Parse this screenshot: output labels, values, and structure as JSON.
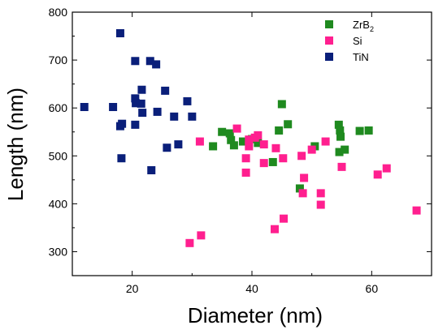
{
  "chart_data": {
    "type": "scatter",
    "xlabel": "Diameter (nm)",
    "ylabel": "Length (nm)",
    "xlim": [
      10,
      70
    ],
    "ylim": [
      250,
      800
    ],
    "xticks": [
      20,
      40,
      60
    ],
    "yticks": [
      300,
      400,
      500,
      600,
      700,
      800
    ],
    "xtick_labels": [
      "20",
      "40",
      "60"
    ],
    "ytick_labels": [
      "300",
      "400",
      "500",
      "600",
      "700",
      "800"
    ],
    "grid": false,
    "legend_position": "top-right",
    "series": [
      {
        "name": "ZrB2",
        "legend_base": "ZrB",
        "legend_sub": "2",
        "color": "#1f8a1f",
        "marker": "square",
        "points": [
          [
            33.5,
            520
          ],
          [
            35,
            550
          ],
          [
            36.3,
            547
          ],
          [
            36.5,
            533
          ],
          [
            37,
            522
          ],
          [
            38.5,
            530
          ],
          [
            40,
            535
          ],
          [
            41,
            527
          ],
          [
            43.5,
            487
          ],
          [
            44.5,
            553
          ],
          [
            45,
            608
          ],
          [
            46,
            566
          ],
          [
            48,
            432
          ],
          [
            50.5,
            520
          ],
          [
            54.6,
            508
          ],
          [
            54.5,
            565
          ],
          [
            54.7,
            553
          ],
          [
            54.8,
            540
          ],
          [
            55.5,
            513
          ],
          [
            58,
            552
          ],
          [
            59.5,
            553
          ]
        ]
      },
      {
        "name": "Si",
        "color": "#ff1f8f",
        "marker": "square",
        "points": [
          [
            29.6,
            318
          ],
          [
            31.3,
            530
          ],
          [
            31.5,
            334
          ],
          [
            37.5,
            557
          ],
          [
            39,
            465
          ],
          [
            39,
            495
          ],
          [
            39.5,
            520
          ],
          [
            39.5,
            534
          ],
          [
            40.5,
            538
          ],
          [
            41,
            543
          ],
          [
            42,
            485
          ],
          [
            42,
            524
          ],
          [
            43.8,
            347
          ],
          [
            44,
            516
          ],
          [
            45.2,
            495
          ],
          [
            45.3,
            369
          ],
          [
            48.5,
            422
          ],
          [
            48.7,
            454
          ],
          [
            48.3,
            500
          ],
          [
            50,
            513
          ],
          [
            51.5,
            422
          ],
          [
            51.5,
            398
          ],
          [
            52.3,
            530
          ],
          [
            55,
            477
          ],
          [
            61,
            461
          ],
          [
            62.5,
            474
          ],
          [
            67.5,
            386
          ]
        ]
      },
      {
        "name": "TiN",
        "color": "#0a1f7a",
        "marker": "square",
        "points": [
          [
            12,
            602
          ],
          [
            16.8,
            602
          ],
          [
            18,
            756
          ],
          [
            18,
            562
          ],
          [
            18.3,
            567
          ],
          [
            18.2,
            495
          ],
          [
            20.5,
            698
          ],
          [
            20.5,
            620
          ],
          [
            20.6,
            610
          ],
          [
            20.5,
            565
          ],
          [
            21.5,
            609
          ],
          [
            21.6,
            638
          ],
          [
            21.7,
            590
          ],
          [
            23,
            698
          ],
          [
            24,
            691
          ],
          [
            23.2,
            470
          ],
          [
            24.2,
            592
          ],
          [
            25.5,
            636
          ],
          [
            25.8,
            517
          ],
          [
            27,
            582
          ],
          [
            27.7,
            524
          ],
          [
            29.2,
            614
          ],
          [
            30,
            582
          ]
        ]
      }
    ]
  }
}
